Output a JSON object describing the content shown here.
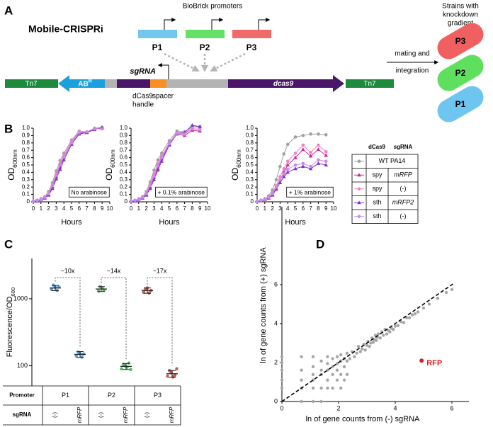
{
  "panel_labels": [
    "A",
    "B",
    "C",
    "D"
  ],
  "diagram": {
    "title": "Mobile-CRISPRi",
    "promoter_heading": "BioBrick promoters",
    "promoters": [
      "P1",
      "P2",
      "P3"
    ],
    "tn7": [
      "Tn7",
      "Tn7"
    ],
    "resistance": {
      "text": "AB",
      "sup": "R"
    },
    "sgrna": "sgRNA",
    "handle": [
      "dCas9",
      "handle"
    ],
    "spacer": "spacer",
    "dcas9": "dcas9",
    "transfer": [
      "mating and",
      "integration"
    ],
    "strains_heading": [
      "Strains with",
      "knockdown",
      "gradient"
    ],
    "strains": [
      "P3",
      "P2",
      "P1"
    ]
  },
  "growth_legend": {
    "headers": [
      "dCas9",
      "sgRNA"
    ],
    "rows": [
      [
        "WT PA14"
      ],
      [
        "spy",
        "mRFP"
      ],
      [
        "spy",
        "(-)"
      ],
      [
        "sth",
        "mRFP2"
      ],
      [
        "sth",
        "(-)"
      ]
    ]
  },
  "chart_data": [
    {
      "type": "line",
      "y_label": "OD",
      "y_label_sub": "600nm",
      "x_label": "Hours",
      "annotation": "No arabinose",
      "xlim": [
        0,
        10
      ],
      "xticks": [
        0,
        1,
        2,
        3,
        4,
        5,
        6,
        7,
        8,
        9,
        10
      ],
      "ylim": [
        0,
        1
      ],
      "yticks": [
        0,
        0.1,
        0.2,
        0.3,
        0.4,
        0.5,
        0.6,
        0.7,
        0.8,
        0.9,
        {
          "value": 1,
          "label": "1.0"
        }
      ],
      "x": [
        0,
        0.5,
        1,
        1.5,
        2,
        2.5,
        3,
        3.5,
        4,
        5,
        6,
        7,
        8,
        9
      ],
      "series": [
        {
          "color": "#a0a0a0",
          "marker": "circle",
          "values": [
            0.01,
            0.02,
            0.04,
            0.07,
            0.14,
            0.26,
            0.42,
            0.56,
            0.66,
            0.84,
            0.96,
            0.95,
            1.0,
            1.01
          ]
        },
        {
          "color": "#d4268f",
          "marker": "triangle",
          "values": [
            0.01,
            0.02,
            0.03,
            0.05,
            0.1,
            0.2,
            0.34,
            0.47,
            0.6,
            0.8,
            0.93,
            0.94,
            0.99,
            1.0
          ]
        },
        {
          "color": "#ee82c8",
          "marker": "circle",
          "values": [
            0.01,
            0.02,
            0.03,
            0.06,
            0.12,
            0.23,
            0.38,
            0.52,
            0.63,
            0.82,
            0.95,
            0.95,
            0.99,
            1.0
          ]
        },
        {
          "color": "#7a35c8",
          "marker": "triangle",
          "values": [
            0.01,
            0.01,
            0.03,
            0.05,
            0.09,
            0.18,
            0.31,
            0.44,
            0.57,
            0.78,
            0.92,
            0.94,
            0.98,
            1.01
          ]
        },
        {
          "color": "#c98ae8",
          "marker": "circle",
          "values": [
            0.01,
            0.02,
            0.03,
            0.06,
            0.11,
            0.22,
            0.36,
            0.5,
            0.61,
            0.8,
            0.94,
            0.95,
            0.99,
            0.99
          ]
        }
      ]
    },
    {
      "type": "line",
      "y_label": "OD",
      "y_label_sub": "600nm",
      "x_label": "Hours",
      "annotation": "+ 0.1% arabinose",
      "xlim": [
        0,
        10
      ],
      "xticks": [
        0,
        1,
        2,
        3,
        4,
        5,
        6,
        7,
        8,
        9,
        10
      ],
      "ylim": [
        0,
        1
      ],
      "yticks": [
        0,
        0.1,
        0.2,
        0.3,
        0.4,
        0.5,
        0.6,
        0.7,
        0.8,
        0.9,
        {
          "value": 1,
          "label": "1.0"
        }
      ],
      "x": [
        0,
        0.5,
        1,
        1.5,
        2,
        2.5,
        3,
        3.5,
        4,
        5,
        6,
        7,
        8,
        9
      ],
      "series": [
        {
          "color": "#a0a0a0",
          "marker": "circle",
          "values": [
            0.01,
            0.02,
            0.04,
            0.07,
            0.14,
            0.27,
            0.43,
            0.57,
            0.66,
            0.83,
            0.96,
            0.95,
            1.02,
            1.02
          ]
        },
        {
          "color": "#d4268f",
          "marker": "triangle",
          "values": [
            0.01,
            0.02,
            0.03,
            0.05,
            0.1,
            0.2,
            0.33,
            0.45,
            0.58,
            0.78,
            0.92,
            0.9,
            0.97,
            0.96
          ]
        },
        {
          "color": "#ee82c8",
          "marker": "circle",
          "values": [
            0.01,
            0.02,
            0.03,
            0.06,
            0.12,
            0.24,
            0.38,
            0.52,
            0.62,
            0.8,
            0.94,
            0.93,
            1.0,
            1.0
          ]
        },
        {
          "color": "#7a35c8",
          "marker": "triangle",
          "values": [
            0.01,
            0.01,
            0.03,
            0.05,
            0.09,
            0.18,
            0.3,
            0.43,
            0.55,
            0.77,
            0.93,
            0.94,
            1.04,
            1.02
          ]
        },
        {
          "color": "#c98ae8",
          "marker": "circle",
          "values": [
            0.01,
            0.02,
            0.03,
            0.06,
            0.11,
            0.22,
            0.35,
            0.49,
            0.6,
            0.79,
            0.93,
            0.92,
            0.99,
            0.98
          ]
        }
      ]
    },
    {
      "type": "line",
      "y_label": "OD",
      "y_label_sub": "600nm",
      "x_label": "Hours",
      "annotation": "+ 1% arabinose",
      "xlim": [
        0,
        10
      ],
      "xticks": [
        0,
        1,
        2,
        3,
        4,
        5,
        6,
        7,
        8,
        9,
        10
      ],
      "ylim": [
        0,
        1
      ],
      "yticks": [
        0,
        0.1,
        0.2,
        0.3,
        0.4,
        0.5,
        0.6,
        0.7,
        0.8,
        0.9,
        {
          "value": 1,
          "label": "1.0"
        }
      ],
      "x": [
        0,
        0.5,
        1,
        1.5,
        2,
        2.5,
        3,
        3.5,
        4,
        5,
        6,
        7,
        8,
        9
      ],
      "series": [
        {
          "color": "#a0a0a0",
          "marker": "circle",
          "values": [
            0.01,
            0.02,
            0.04,
            0.08,
            0.16,
            0.3,
            0.48,
            0.65,
            0.78,
            0.88,
            0.9,
            0.92,
            0.92,
            0.91
          ]
        },
        {
          "color": "#d4268f",
          "marker": "triangle",
          "values": [
            0.01,
            0.02,
            0.03,
            0.05,
            0.1,
            0.19,
            0.3,
            0.4,
            0.5,
            0.6,
            0.71,
            0.62,
            0.71,
            0.63
          ]
        },
        {
          "color": "#ee82c8",
          "marker": "circle",
          "values": [
            0.01,
            0.02,
            0.03,
            0.06,
            0.12,
            0.22,
            0.34,
            0.45,
            0.55,
            0.66,
            0.77,
            0.67,
            0.77,
            0.68
          ]
        },
        {
          "color": "#7a35c8",
          "marker": "triangle",
          "values": [
            0.01,
            0.02,
            0.03,
            0.05,
            0.09,
            0.17,
            0.26,
            0.34,
            0.4,
            0.45,
            0.48,
            0.45,
            0.52,
            0.5
          ]
        },
        {
          "color": "#c98ae8",
          "marker": "circle",
          "values": [
            0.01,
            0.02,
            0.03,
            0.06,
            0.11,
            0.2,
            0.3,
            0.38,
            0.44,
            0.5,
            0.52,
            0.48,
            0.57,
            0.55
          ]
        }
      ]
    },
    {
      "type": "dot",
      "y_label": "Fluorescence/OD",
      "y_label_sub": "600",
      "log_y": true,
      "ylim": [
        50,
        4000
      ],
      "yticks": [
        100,
        1000
      ],
      "table_row_labels": [
        "Promoter",
        "sgRNA"
      ],
      "promoters": [
        {
          "name": "P1",
          "color": "#3b8fc4",
          "fold_label": "~10x",
          "groups": [
            {
              "sgrna": "(-)",
              "mean": 1450,
              "error": 130,
              "points": [
                1380,
                1600,
                1480,
                1330,
                1500
              ]
            },
            {
              "sgrna": "mRFP",
              "mean": 148,
              "error": 15,
              "points": [
                140,
                160,
                152,
                135,
                150
              ]
            }
          ]
        },
        {
          "name": "P2",
          "color": "#3cb043",
          "fold_label": "~14x",
          "groups": [
            {
              "sgrna": "(-)",
              "mean": 1400,
              "error": 120,
              "points": [
                1300,
                1520,
                1450,
                1350
              ]
            },
            {
              "sgrna": "mRFP",
              "mean": 98,
              "error": 10,
              "points": [
                90,
                105,
                100,
                95,
                110,
                88
              ]
            }
          ]
        },
        {
          "name": "P3",
          "color": "#b5453a",
          "fold_label": "~17x",
          "groups": [
            {
              "sgrna": "(-)",
              "mean": 1330,
              "error": 120,
              "points": [
                1250,
                1400,
                1450,
                1220,
                1330
              ]
            },
            {
              "sgrna": "mRFP",
              "mean": 76,
              "error": 9,
              "points": [
                70,
                85,
                80,
                68,
                72,
                90
              ]
            }
          ]
        }
      ]
    },
    {
      "type": "scatter",
      "x_label": "ln of gene counts from (-) sgRNA",
      "y_label": "ln of gene counts from (+) sgRNA",
      "xlim": [
        0,
        6.6
      ],
      "ylim": [
        0,
        10
      ],
      "xticks": [
        0,
        2,
        4,
        6
      ],
      "yticks": [
        0,
        2,
        4,
        6
      ],
      "identity_line": [
        0,
        6.1
      ],
      "series": [
        {
          "color": "#a6a6a6",
          "x": [
            0,
            0,
            0,
            0,
            0,
            0.69,
            0.69,
            0.69,
            0.69,
            0.69,
            1.1,
            1.1,
            1.1,
            1.1,
            1.1,
            1.1,
            1.39,
            1.39,
            1.39,
            1.39,
            1.39,
            1.61,
            1.61,
            1.61,
            1.61,
            1.61,
            1.79,
            1.79,
            1.79,
            1.79,
            1.95,
            1.95,
            1.95,
            1.95,
            2.08,
            2.08,
            2.08,
            2.08,
            2.2,
            2.2,
            2.2,
            2.3,
            2.3,
            2.3,
            2.4,
            2.48,
            2.56,
            2.64,
            2.7,
            2.77,
            2.83,
            2.89,
            2.94,
            3.0,
            3.04,
            3.09,
            3.14,
            3.18,
            3.22,
            3.26,
            3.3,
            3.33,
            3.37,
            3.4,
            3.47,
            3.53,
            3.58,
            3.64,
            3.7,
            3.76,
            3.81,
            3.87,
            3.93,
            4.0,
            4.1,
            4.2,
            4.3,
            4.4,
            4.5,
            4.6,
            4.7,
            4.8,
            5.0,
            5.2,
            5.5,
            5.8,
            6.0
          ],
          "values": [
            0.69,
            1.1,
            1.61,
            2.0,
            2.3,
            0,
            0.69,
            1.1,
            1.61,
            2.3,
            0,
            0.69,
            1.1,
            1.39,
            1.79,
            2.3,
            0,
            0.69,
            1.39,
            1.61,
            2.08,
            0.69,
            1.1,
            1.61,
            1.95,
            2.3,
            0.69,
            1.39,
            1.79,
            2.2,
            1.1,
            1.61,
            1.95,
            2.3,
            0.69,
            1.39,
            2.08,
            2.4,
            1.1,
            1.79,
            2.2,
            1.39,
            2.08,
            2.48,
            2.2,
            2.56,
            2.3,
            2.48,
            2.83,
            2.56,
            2.7,
            2.94,
            2.64,
            2.89,
            3.09,
            2.83,
            3.0,
            3.26,
            3.04,
            3.18,
            3.4,
            3.14,
            3.3,
            3.47,
            3.26,
            3.58,
            3.4,
            3.7,
            3.47,
            3.64,
            3.58,
            3.76,
            3.7,
            3.87,
            3.9,
            4.1,
            4.05,
            4.3,
            4.3,
            4.45,
            4.5,
            4.6,
            4.8,
            5.0,
            5.3,
            5.6,
            5.75
          ]
        },
        {
          "name": "RFP",
          "color": "#e02020",
          "x": [
            4.93
          ],
          "values": [
            2.1
          ]
        }
      ]
    }
  ]
}
